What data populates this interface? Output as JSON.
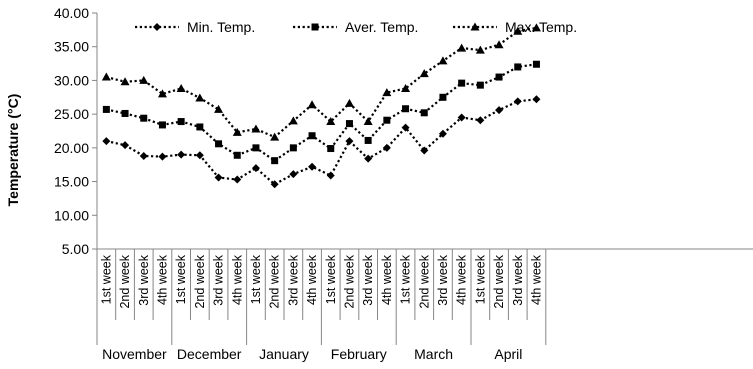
{
  "chart_data": {
    "type": "line",
    "title": "",
    "xlabel": "",
    "ylabel": "Temperature (°C)",
    "ylim": [
      5,
      40
    ],
    "yticks": [
      "5.00",
      "10.00",
      "15.00",
      "20.00",
      "25.00",
      "30.00",
      "35.00",
      "40.00"
    ],
    "ytick_values": [
      5,
      10,
      15,
      20,
      25,
      30,
      35,
      40
    ],
    "grid": false,
    "legend_position": "top",
    "categories": [
      "1st week",
      "2nd week",
      "3rd week",
      "4th week",
      "1st week",
      "2nd week",
      "3rd week",
      "4th week",
      "1st week",
      "2nd week",
      "3rd week",
      "4th week",
      "1st week",
      "2nd week",
      "3rd week",
      "4th week",
      "1st week",
      "2nd week",
      "3rd week",
      "4th week",
      "1st week",
      "2nd week",
      "3rd week",
      "4th week"
    ],
    "groups": [
      {
        "name": "November",
        "start": 0,
        "count": 4
      },
      {
        "name": "December",
        "start": 4,
        "count": 4
      },
      {
        "name": "January",
        "start": 8,
        "count": 4
      },
      {
        "name": "February",
        "start": 12,
        "count": 4
      },
      {
        "name": "March",
        "start": 16,
        "count": 4
      },
      {
        "name": "April",
        "start": 20,
        "count": 4
      }
    ],
    "series": [
      {
        "name": "Min. Temp.",
        "marker": "diamond",
        "color": "#000000",
        "values": [
          21.0,
          20.4,
          18.8,
          18.7,
          19.0,
          18.9,
          15.6,
          15.3,
          17.0,
          14.6,
          16.1,
          17.2,
          15.9,
          21.0,
          18.4,
          20.0,
          23.0,
          19.6,
          22.1,
          24.5,
          24.1,
          25.6,
          26.9,
          27.2
        ]
      },
      {
        "name": "Aver. Temp.",
        "marker": "square",
        "color": "#000000",
        "values": [
          25.7,
          25.1,
          24.4,
          23.4,
          23.9,
          23.1,
          20.6,
          18.9,
          20.0,
          18.1,
          20.0,
          21.8,
          19.9,
          23.6,
          21.1,
          24.1,
          25.8,
          25.2,
          27.5,
          29.6,
          29.3,
          30.5,
          32.0,
          32.4
        ]
      },
      {
        "name": "Max. Temp.",
        "marker": "triangle",
        "color": "#000000",
        "values": [
          30.5,
          29.8,
          30.0,
          28.0,
          28.8,
          27.4,
          25.7,
          22.3,
          22.8,
          21.6,
          24.0,
          26.4,
          23.9,
          26.6,
          23.9,
          28.2,
          28.8,
          31.0,
          32.9,
          34.8,
          34.5,
          35.3,
          37.3,
          37.8
        ]
      }
    ]
  }
}
